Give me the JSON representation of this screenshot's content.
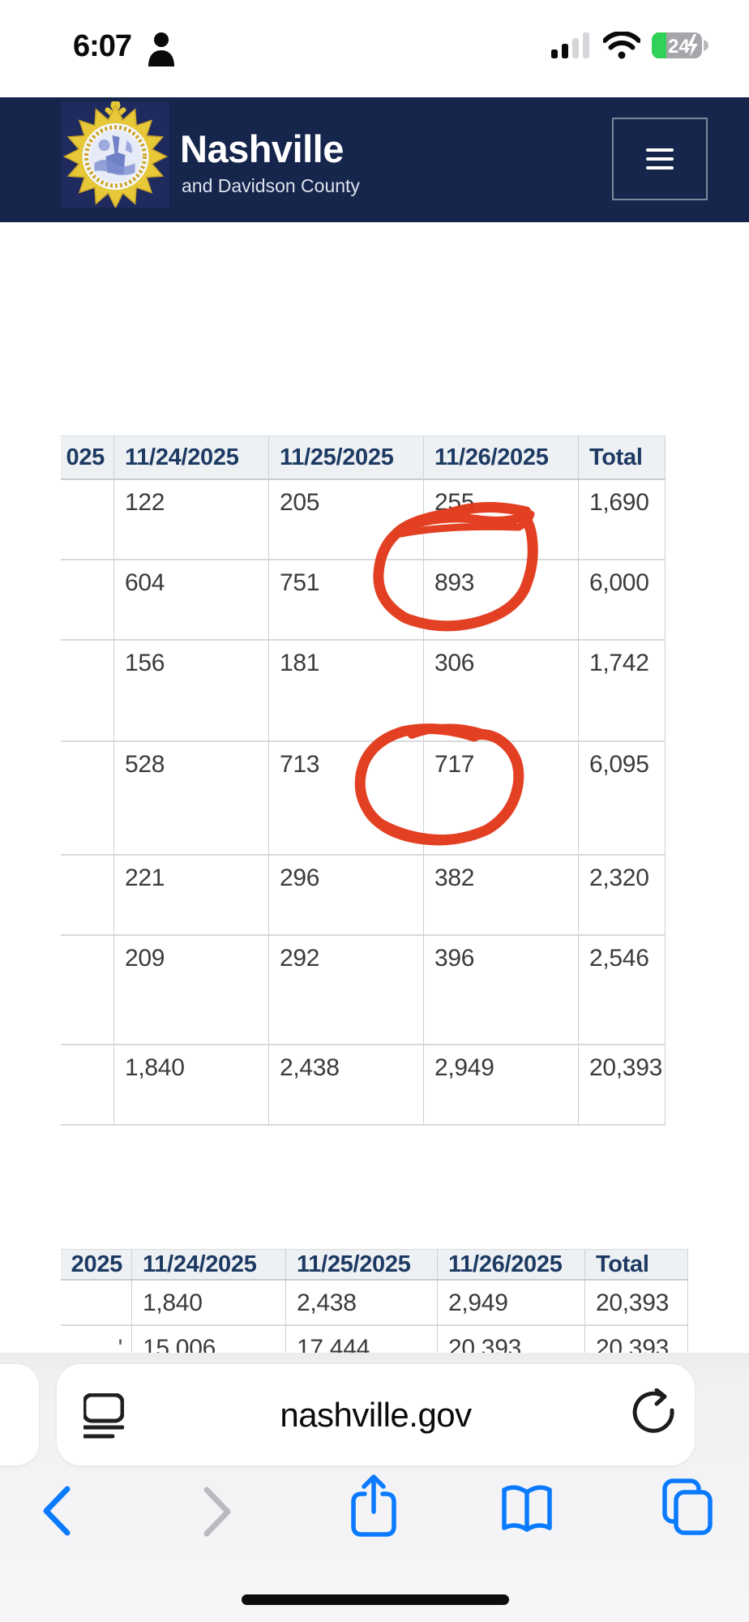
{
  "status_bar": {
    "time": "6:07",
    "battery_level": "24"
  },
  "site_header": {
    "title": "Nashville",
    "subtitle": "and Davidson County"
  },
  "page": {
    "table1": {
      "headers": [
        "025",
        "11/24/2025",
        "11/25/2025",
        "11/26/2025",
        "Total"
      ],
      "rows": [
        [
          "",
          "122",
          "205",
          "255",
          "1,690"
        ],
        [
          "",
          "604",
          "751",
          "893",
          "6,000"
        ],
        [
          "",
          "156",
          "181",
          "306",
          "1,742"
        ],
        [
          "",
          "528",
          "713",
          "717",
          "6,095"
        ],
        [
          "",
          "221",
          "296",
          "382",
          "2,320"
        ],
        [
          "",
          "209",
          "292",
          "396",
          "2,546"
        ],
        [
          "",
          "1,840",
          "2,438",
          "2,949",
          "20,393"
        ]
      ]
    },
    "table2": {
      "headers": [
        "2025",
        "11/24/2025",
        "11/25/2025",
        "11/26/2025",
        "Total"
      ],
      "rows": [
        [
          "",
          "1,840",
          "2,438",
          "2,949",
          "20,393"
        ],
        [
          "'",
          "15,006",
          "17,444",
          "20,393",
          "20,393"
        ]
      ]
    },
    "annotations": [
      {
        "type": "hand-drawn-marker-circle",
        "around_value": "893"
      },
      {
        "type": "hand-drawn-marker-circle",
        "around_value": "717"
      }
    ]
  },
  "browser": {
    "url": "nashville.gov",
    "icons": [
      "page-menu",
      "reload",
      "back",
      "forward",
      "share",
      "bookmarks",
      "tabs"
    ]
  },
  "status_icons": [
    "person",
    "cellular-signal",
    "wifi",
    "battery-charging"
  ],
  "colors": {
    "header_navy": "#15254b",
    "logo_tile_navy": "#1f2a5e",
    "table_header_text": "#1d3a63",
    "annotation_red": "#e2391b",
    "browser_accent_blue": "#0a7aff",
    "battery_green": "#30d158"
  }
}
